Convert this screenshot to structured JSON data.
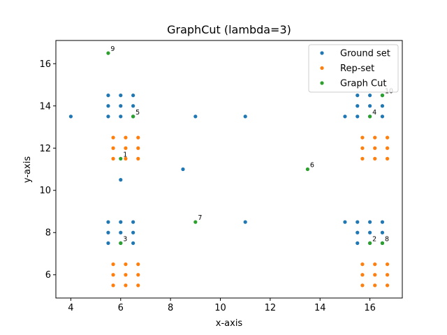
{
  "chart_data": {
    "type": "scatter",
    "title": "GraphCut (lambda=3)",
    "xlabel": "x-axis",
    "ylabel": "y-axis",
    "xlim": [
      3.4,
      17.3
    ],
    "ylim": [
      4.9,
      17.1
    ],
    "xticks": [
      4,
      6,
      8,
      10,
      12,
      14,
      16
    ],
    "yticks": [
      6,
      8,
      10,
      12,
      14,
      16
    ],
    "grid": false,
    "legend_position": "top-right",
    "series": [
      {
        "name": "Ground set",
        "color": "#1f77b4",
        "points": [
          [
            5.5,
            14.5
          ],
          [
            6,
            14.5
          ],
          [
            6.5,
            14.5
          ],
          [
            5.5,
            14
          ],
          [
            6,
            14
          ],
          [
            6.5,
            14
          ],
          [
            5.5,
            13.5
          ],
          [
            6,
            13.5
          ],
          [
            6.5,
            13.5
          ],
          [
            4,
            13.5
          ],
          [
            9,
            13.5
          ],
          [
            11,
            13.5
          ],
          [
            15.5,
            14.5
          ],
          [
            16,
            14.5
          ],
          [
            16.5,
            14.5
          ],
          [
            15.5,
            14
          ],
          [
            16,
            14
          ],
          [
            16.5,
            14
          ],
          [
            15,
            13.5
          ],
          [
            15.5,
            13.5
          ],
          [
            16,
            13.5
          ],
          [
            16.5,
            13.5
          ],
          [
            8.5,
            11
          ],
          [
            6,
            10.5
          ],
          [
            5.5,
            8.5
          ],
          [
            6,
            8.5
          ],
          [
            6.5,
            8.5
          ],
          [
            5.5,
            8
          ],
          [
            6,
            8
          ],
          [
            6.5,
            8
          ],
          [
            5.5,
            7.5
          ],
          [
            6,
            7.5
          ],
          [
            6.5,
            7.5
          ],
          [
            11,
            8.5
          ],
          [
            15,
            8.5
          ],
          [
            15.5,
            8.5
          ],
          [
            16,
            8.5
          ],
          [
            16.5,
            8.5
          ],
          [
            15.5,
            8
          ],
          [
            16,
            8
          ],
          [
            16.5,
            8
          ],
          [
            15.5,
            7.5
          ],
          [
            16,
            7.5
          ],
          [
            16.5,
            7.5
          ]
        ]
      },
      {
        "name": "Rep-set",
        "color": "#ff7f0e",
        "points": [
          [
            5.7,
            12.5
          ],
          [
            6.2,
            12.5
          ],
          [
            6.7,
            12.5
          ],
          [
            5.7,
            12
          ],
          [
            6.2,
            12
          ],
          [
            6.7,
            12
          ],
          [
            5.7,
            11.5
          ],
          [
            6.2,
            11.5
          ],
          [
            6.7,
            11.5
          ],
          [
            15.7,
            12.5
          ],
          [
            16.2,
            12.5
          ],
          [
            16.7,
            12.5
          ],
          [
            15.7,
            12
          ],
          [
            16.2,
            12
          ],
          [
            16.7,
            12
          ],
          [
            15.7,
            11.5
          ],
          [
            16.2,
            11.5
          ],
          [
            16.7,
            11.5
          ],
          [
            5.7,
            6.5
          ],
          [
            6.2,
            6.5
          ],
          [
            6.7,
            6.5
          ],
          [
            5.7,
            6
          ],
          [
            6.2,
            6
          ],
          [
            6.7,
            6
          ],
          [
            5.7,
            5.5
          ],
          [
            6.2,
            5.5
          ],
          [
            6.7,
            5.5
          ],
          [
            15.7,
            6.5
          ],
          [
            16.2,
            6.5
          ],
          [
            16.7,
            6.5
          ],
          [
            15.7,
            6
          ],
          [
            16.2,
            6
          ],
          [
            16.7,
            6
          ],
          [
            15.7,
            5.5
          ],
          [
            16.2,
            5.5
          ],
          [
            16.7,
            5.5
          ]
        ]
      },
      {
        "name": "Graph Cut",
        "color": "#2ca02c",
        "points": [
          [
            6,
            11.5
          ],
          [
            16,
            7.5
          ],
          [
            6,
            7.5
          ],
          [
            16,
            13.5
          ],
          [
            6.5,
            13.5
          ],
          [
            13.5,
            11
          ],
          [
            9,
            8.5
          ],
          [
            16.5,
            7.5
          ],
          [
            5.5,
            16.5
          ],
          [
            16.5,
            14.5
          ]
        ],
        "labels": [
          "1",
          "2",
          "3",
          "4",
          "5",
          "6",
          "7",
          "8",
          "9",
          "10"
        ]
      }
    ]
  }
}
